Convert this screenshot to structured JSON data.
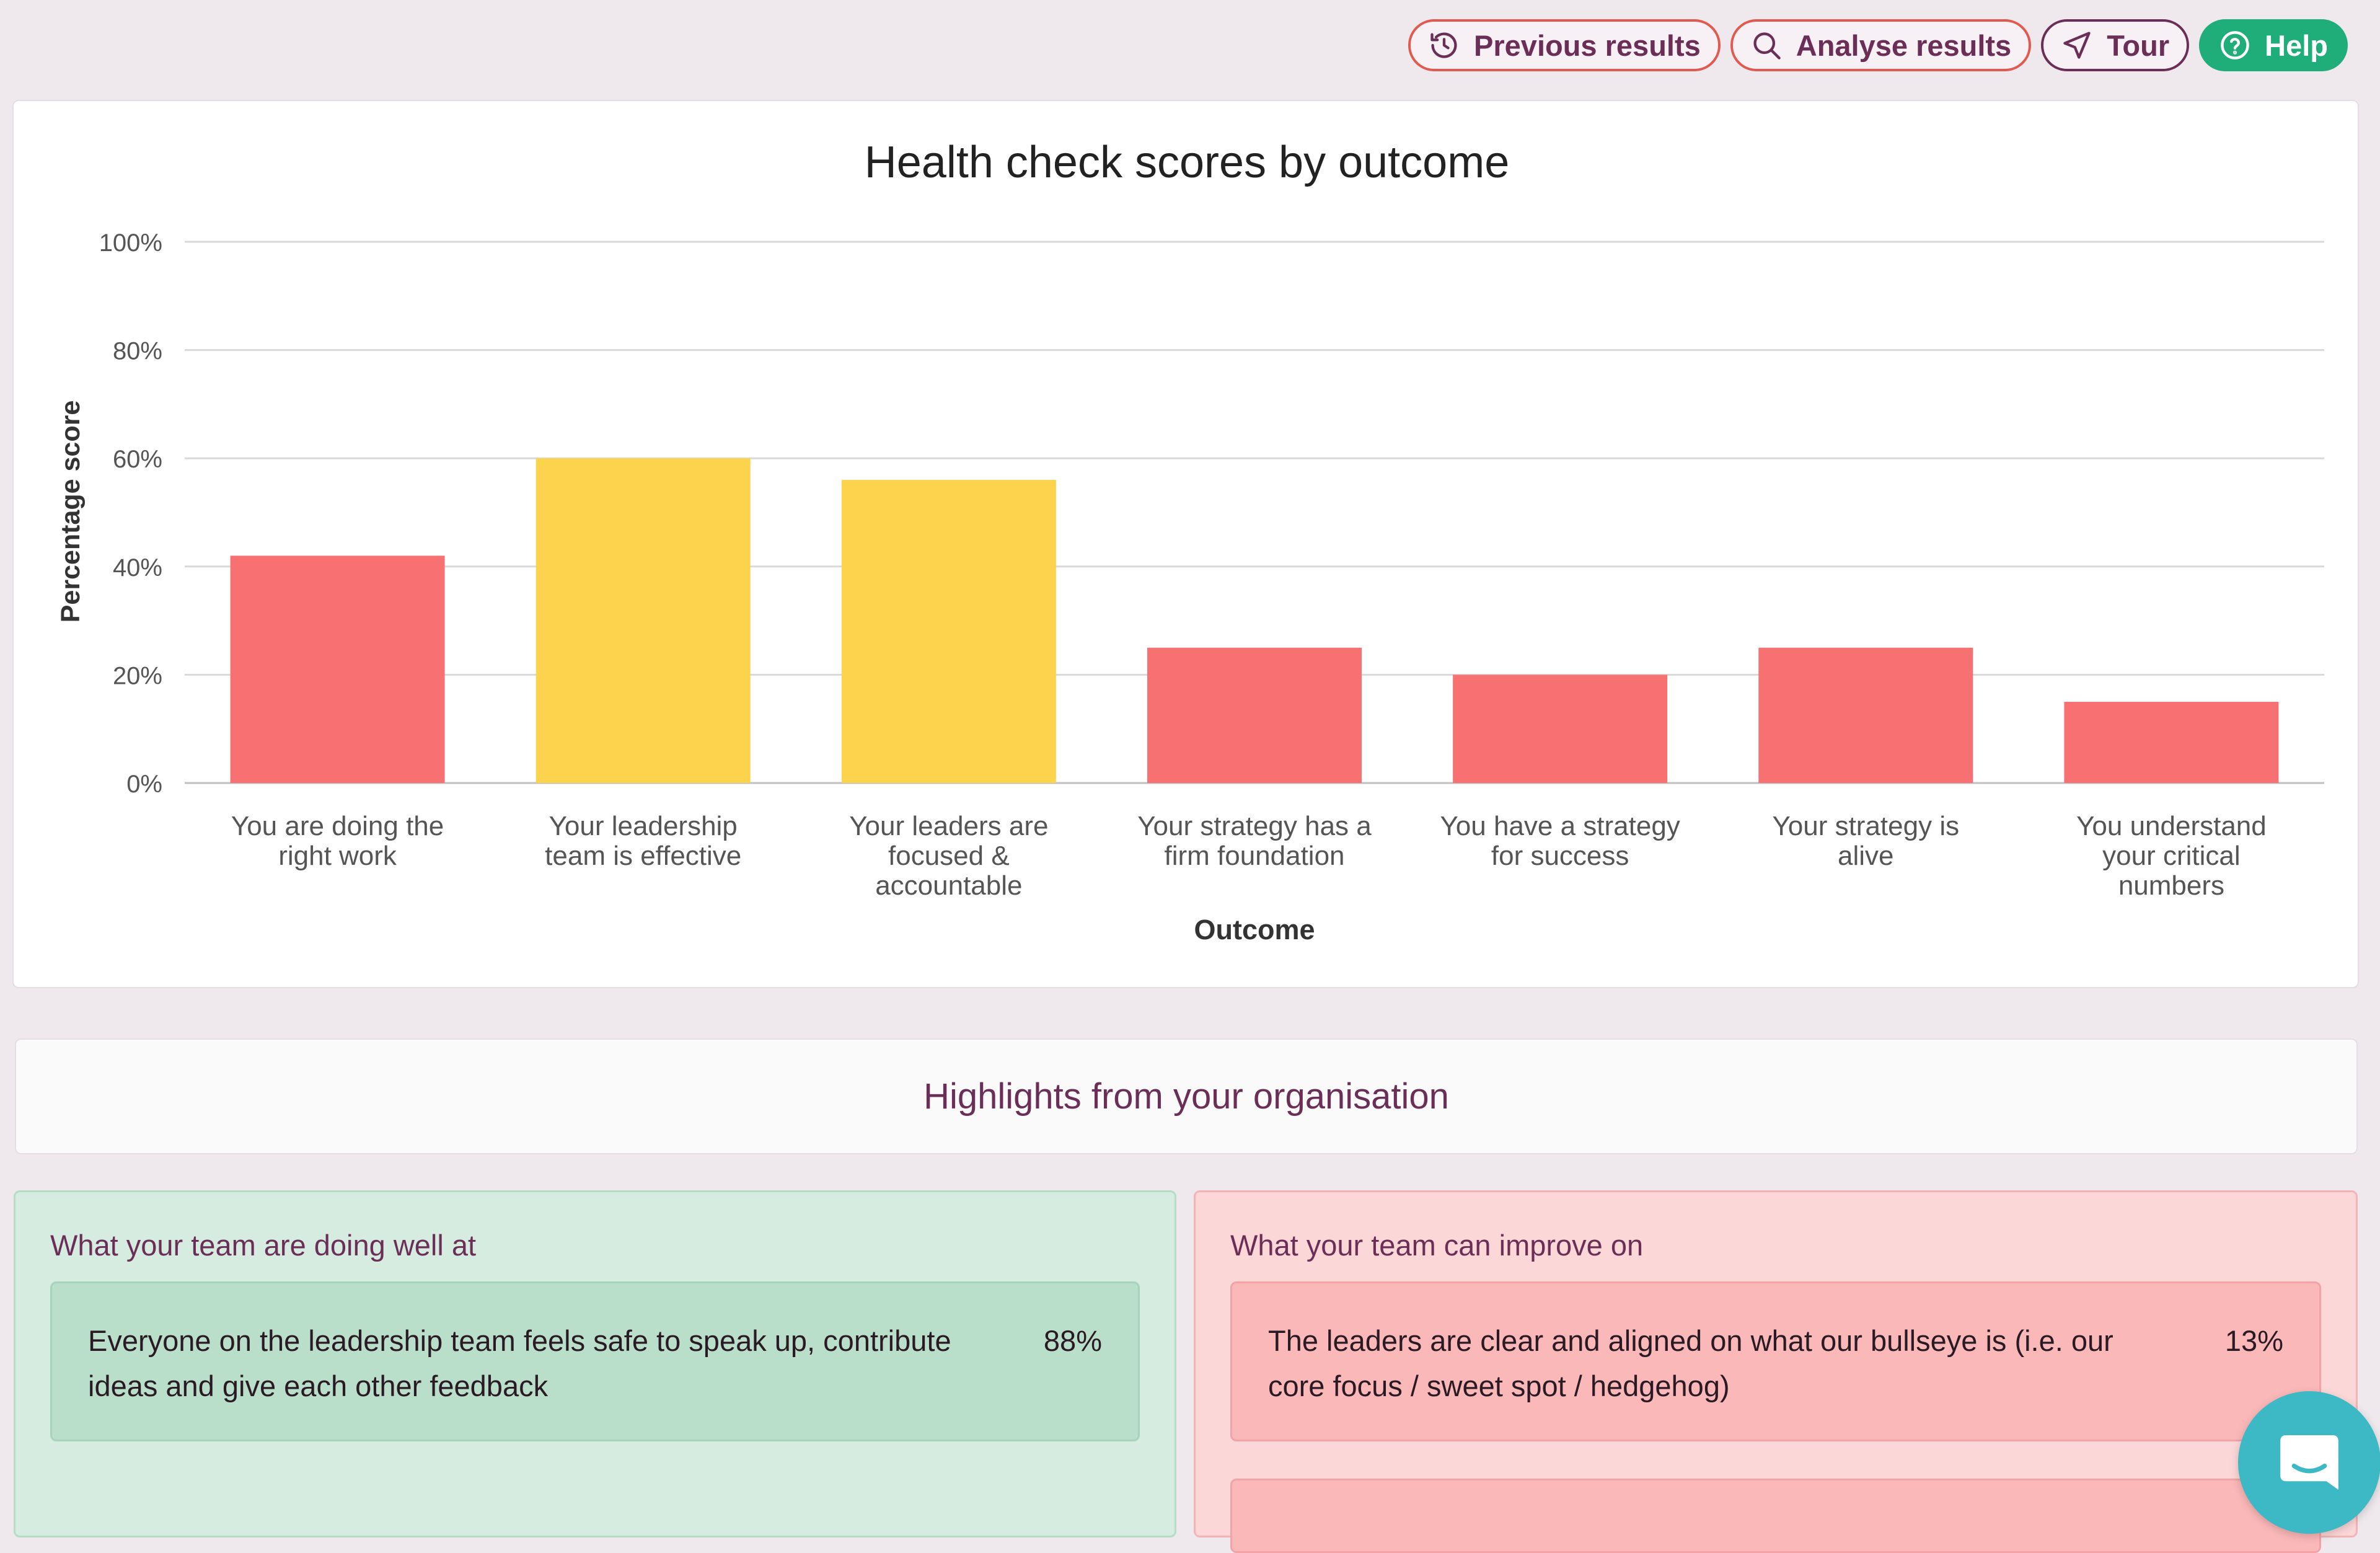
{
  "toolbar": {
    "previous_results": "Previous results",
    "analyse_results": "Analyse results",
    "tour": "Tour",
    "help": "Help"
  },
  "chart_data": {
    "type": "bar",
    "title": "Health check scores by outcome",
    "xlabel": "Outcome",
    "ylabel": "Percentage score",
    "ylim": [
      0,
      100
    ],
    "yticks": [
      "0%",
      "20%",
      "40%",
      "60%",
      "80%",
      "100%"
    ],
    "grid": true,
    "categories": [
      [
        "You are doing the",
        "right work"
      ],
      [
        "Your leadership",
        "team is effective"
      ],
      [
        "Your leaders are",
        "focused &",
        "accountable"
      ],
      [
        "Your strategy has a",
        "firm foundation"
      ],
      [
        "You have a strategy",
        "for success"
      ],
      [
        "Your strategy is",
        "alive"
      ],
      [
        "You understand",
        "your critical",
        "numbers"
      ]
    ],
    "values": [
      42,
      60,
      56,
      25,
      20,
      25,
      15
    ],
    "colors": [
      "#f77072",
      "#fcd34d",
      "#fcd34d",
      "#f77072",
      "#f77072",
      "#f77072",
      "#f77072"
    ]
  },
  "highlights": {
    "title": "Highlights from your organisation",
    "good": {
      "title": "What your team are doing well at",
      "items": [
        {
          "text": "Everyone on the leadership team feels safe to speak up, contribute ideas and give each other feedback",
          "pct": "88%"
        }
      ]
    },
    "bad": {
      "title": "What your team can improve on",
      "items": [
        {
          "text": "The leaders are clear and aligned on what our bullseye is (i.e. our core focus / sweet spot / hedgehog)",
          "pct": "13%"
        }
      ]
    }
  }
}
